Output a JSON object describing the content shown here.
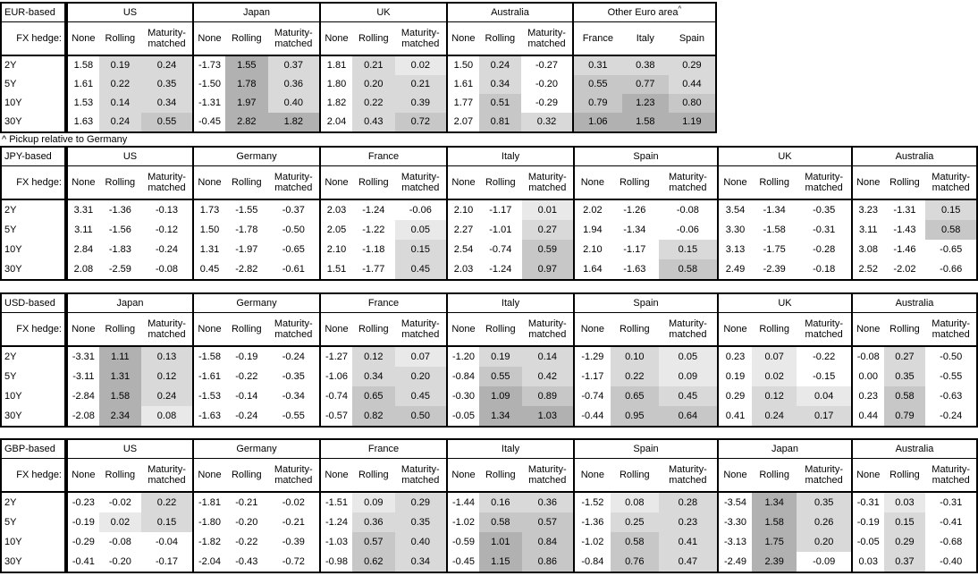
{
  "fx_hedge_label": "FX hedge:",
  "row_labels": [
    "2Y",
    "5Y",
    "10Y",
    "30Y"
  ],
  "hedge_columns": [
    "None",
    "Rolling",
    "Maturity-matched"
  ],
  "footnote": "^ Pickup relative to Germany",
  "footnote_marker": "^",
  "shade_thresholds": [
    0,
    0.1,
    0.5,
    1.0
  ],
  "shade_colors": {
    "negative": "#ffffff",
    "tier1": "#e9e9e9",
    "tier2": "#d9d9d9",
    "tier3": "#c7c7c7",
    "tier4": "#b1b1b1"
  },
  "tables": [
    {
      "base": "EUR-based",
      "groups": [
        {
          "name": "US",
          "columns": [
            "None",
            "Rolling",
            "Maturity-matched"
          ],
          "shaded": [
            false,
            true,
            true
          ],
          "rows": [
            [
              1.58,
              0.19,
              0.24
            ],
            [
              1.61,
              0.22,
              0.35
            ],
            [
              1.53,
              0.14,
              0.34
            ],
            [
              1.63,
              0.24,
              0.55
            ]
          ]
        },
        {
          "name": "Japan",
          "columns": [
            "None",
            "Rolling",
            "Maturity-matched"
          ],
          "shaded": [
            false,
            true,
            true
          ],
          "rows": [
            [
              -1.73,
              1.55,
              0.37
            ],
            [
              -1.5,
              1.78,
              0.36
            ],
            [
              -1.31,
              1.97,
              0.4
            ],
            [
              -0.45,
              2.82,
              1.82
            ]
          ]
        },
        {
          "name": "UK",
          "columns": [
            "None",
            "Rolling",
            "Maturity-matched"
          ],
          "shaded": [
            false,
            true,
            true
          ],
          "rows": [
            [
              1.81,
              0.21,
              0.02
            ],
            [
              1.8,
              0.2,
              0.21
            ],
            [
              1.82,
              0.22,
              0.39
            ],
            [
              2.04,
              0.43,
              0.72
            ]
          ]
        },
        {
          "name": "Australia",
          "columns": [
            "None",
            "Rolling",
            "Maturity-matched"
          ],
          "shaded": [
            false,
            true,
            true
          ],
          "rows": [
            [
              1.5,
              0.24,
              -0.27
            ],
            [
              1.61,
              0.34,
              -0.2
            ],
            [
              1.77,
              0.51,
              -0.29
            ],
            [
              2.07,
              0.81,
              0.32
            ]
          ]
        },
        {
          "name": "Other Euro area",
          "sup": "^",
          "columns": [
            "France",
            "Italy",
            "Spain"
          ],
          "shaded": [
            true,
            true,
            true
          ],
          "rows": [
            [
              0.31,
              0.38,
              0.29
            ],
            [
              0.55,
              0.77,
              0.44
            ],
            [
              0.79,
              1.23,
              0.8
            ],
            [
              1.06,
              1.58,
              1.19
            ]
          ]
        }
      ]
    },
    {
      "base": "JPY-based",
      "groups": [
        {
          "name": "US",
          "columns": [
            "None",
            "Rolling",
            "Maturity-matched"
          ],
          "shaded": [
            false,
            true,
            true
          ],
          "rows": [
            [
              3.31,
              -1.36,
              -0.13
            ],
            [
              3.11,
              -1.56,
              -0.12
            ],
            [
              2.84,
              -1.83,
              -0.24
            ],
            [
              2.08,
              -2.59,
              -0.08
            ]
          ]
        },
        {
          "name": "Germany",
          "columns": [
            "None",
            "Rolling",
            "Maturity-matched"
          ],
          "shaded": [
            false,
            true,
            true
          ],
          "rows": [
            [
              1.73,
              -1.55,
              -0.37
            ],
            [
              1.5,
              -1.78,
              -0.5
            ],
            [
              1.31,
              -1.97,
              -0.65
            ],
            [
              0.45,
              -2.82,
              -0.61
            ]
          ]
        },
        {
          "name": "France",
          "columns": [
            "None",
            "Rolling",
            "Maturity-matched"
          ],
          "shaded": [
            false,
            true,
            true
          ],
          "rows": [
            [
              2.03,
              -1.24,
              -0.06
            ],
            [
              2.05,
              -1.22,
              0.05
            ],
            [
              2.1,
              -1.18,
              0.15
            ],
            [
              1.51,
              -1.77,
              0.45
            ]
          ]
        },
        {
          "name": "Italy",
          "columns": [
            "None",
            "Rolling",
            "Maturity-matched"
          ],
          "shaded": [
            false,
            true,
            true
          ],
          "rows": [
            [
              2.1,
              -1.17,
              0.01
            ],
            [
              2.27,
              -1.01,
              0.27
            ],
            [
              2.54,
              -0.74,
              0.59
            ],
            [
              2.03,
              -1.24,
              0.97
            ]
          ]
        },
        {
          "name": "Spain",
          "columns": [
            "None",
            "Rolling",
            "Maturity-matched"
          ],
          "shaded": [
            false,
            true,
            true
          ],
          "rows": [
            [
              2.02,
              -1.26,
              -0.08
            ],
            [
              1.94,
              -1.34,
              -0.06
            ],
            [
              2.1,
              -1.17,
              0.15
            ],
            [
              1.64,
              -1.63,
              0.58
            ]
          ]
        },
        {
          "name": "UK",
          "columns": [
            "None",
            "Rolling",
            "Maturity-matched"
          ],
          "shaded": [
            false,
            true,
            true
          ],
          "rows": [
            [
              3.54,
              -1.34,
              -0.35
            ],
            [
              3.3,
              -1.58,
              -0.31
            ],
            [
              3.13,
              -1.75,
              -0.28
            ],
            [
              2.49,
              -2.39,
              -0.18
            ]
          ]
        },
        {
          "name": "Australia",
          "columns": [
            "None",
            "Rolling",
            "Maturity-matched"
          ],
          "shaded": [
            false,
            true,
            true
          ],
          "rows": [
            [
              3.23,
              -1.31,
              0.15
            ],
            [
              3.11,
              -1.43,
              0.58
            ],
            [
              3.08,
              -1.46,
              -0.65
            ],
            [
              2.52,
              -2.02,
              -0.66
            ]
          ]
        }
      ]
    },
    {
      "base": "USD-based",
      "groups": [
        {
          "name": "Japan",
          "columns": [
            "None",
            "Rolling",
            "Maturity-matched"
          ],
          "shaded": [
            false,
            true,
            true
          ],
          "rows": [
            [
              -3.31,
              1.11,
              0.13
            ],
            [
              -3.11,
              1.31,
              0.12
            ],
            [
              -2.84,
              1.58,
              0.24
            ],
            [
              -2.08,
              2.34,
              0.08
            ]
          ]
        },
        {
          "name": "Germany",
          "columns": [
            "None",
            "Rolling",
            "Maturity-matched"
          ],
          "shaded": [
            false,
            true,
            true
          ],
          "rows": [
            [
              -1.58,
              -0.19,
              -0.24
            ],
            [
              -1.61,
              -0.22,
              -0.35
            ],
            [
              -1.53,
              -0.14,
              -0.34
            ],
            [
              -1.63,
              -0.24,
              -0.55
            ]
          ]
        },
        {
          "name": "France",
          "columns": [
            "None",
            "Rolling",
            "Maturity-matched"
          ],
          "shaded": [
            false,
            true,
            true
          ],
          "rows": [
            [
              -1.27,
              0.12,
              0.07
            ],
            [
              -1.06,
              0.34,
              0.2
            ],
            [
              -0.74,
              0.65,
              0.45
            ],
            [
              -0.57,
              0.82,
              0.5
            ]
          ]
        },
        {
          "name": "Italy",
          "columns": [
            "None",
            "Rolling",
            "Maturity-matched"
          ],
          "shaded": [
            false,
            true,
            true
          ],
          "rows": [
            [
              -1.2,
              0.19,
              0.14
            ],
            [
              -0.84,
              0.55,
              0.42
            ],
            [
              -0.3,
              1.09,
              0.89
            ],
            [
              -0.05,
              1.34,
              1.03
            ]
          ]
        },
        {
          "name": "Spain",
          "columns": [
            "None",
            "Rolling",
            "Maturity-matched"
          ],
          "shaded": [
            false,
            true,
            true
          ],
          "rows": [
            [
              -1.29,
              0.1,
              0.05
            ],
            [
              -1.17,
              0.22,
              0.09
            ],
            [
              -0.74,
              0.65,
              0.45
            ],
            [
              -0.44,
              0.95,
              0.64
            ]
          ]
        },
        {
          "name": "UK",
          "columns": [
            "None",
            "Rolling",
            "Maturity-matched"
          ],
          "shaded": [
            false,
            true,
            true
          ],
          "rows": [
            [
              0.23,
              0.07,
              -0.22
            ],
            [
              0.19,
              0.02,
              -0.15
            ],
            [
              0.29,
              0.12,
              0.04
            ],
            [
              0.41,
              0.24,
              0.17
            ]
          ]
        },
        {
          "name": "Australia",
          "columns": [
            "None",
            "Rolling",
            "Maturity-matched"
          ],
          "shaded": [
            false,
            true,
            true
          ],
          "rows": [
            [
              -0.08,
              0.27,
              -0.5
            ],
            [
              0.0,
              0.35,
              -0.55
            ],
            [
              0.23,
              0.58,
              -0.63
            ],
            [
              0.44,
              0.79,
              -0.24
            ]
          ]
        }
      ]
    },
    {
      "base": "GBP-based",
      "groups": [
        {
          "name": "US",
          "columns": [
            "None",
            "Rolling",
            "Maturity-matched"
          ],
          "shaded": [
            false,
            true,
            true
          ],
          "rows": [
            [
              -0.23,
              -0.02,
              0.22
            ],
            [
              -0.19,
              0.02,
              0.15
            ],
            [
              -0.29,
              -0.08,
              -0.04
            ],
            [
              -0.41,
              -0.2,
              -0.17
            ]
          ]
        },
        {
          "name": "Germany",
          "columns": [
            "None",
            "Rolling",
            "Maturity-matched"
          ],
          "shaded": [
            false,
            true,
            true
          ],
          "rows": [
            [
              -1.81,
              -0.21,
              -0.02
            ],
            [
              -1.8,
              -0.2,
              -0.21
            ],
            [
              -1.82,
              -0.22,
              -0.39
            ],
            [
              -2.04,
              -0.43,
              -0.72
            ]
          ]
        },
        {
          "name": "France",
          "columns": [
            "None",
            "Rolling",
            "Maturity-matched"
          ],
          "shaded": [
            false,
            true,
            true
          ],
          "rows": [
            [
              -1.51,
              0.09,
              0.29
            ],
            [
              -1.24,
              0.36,
              0.35
            ],
            [
              -1.03,
              0.57,
              0.4
            ],
            [
              -0.98,
              0.62,
              0.34
            ]
          ]
        },
        {
          "name": "Italy",
          "columns": [
            "None",
            "Rolling",
            "Maturity-matched"
          ],
          "shaded": [
            false,
            true,
            true
          ],
          "rows": [
            [
              -1.44,
              0.16,
              0.36
            ],
            [
              -1.02,
              0.58,
              0.57
            ],
            [
              -0.59,
              1.01,
              0.84
            ],
            [
              -0.45,
              1.15,
              0.86
            ]
          ]
        },
        {
          "name": "Spain",
          "columns": [
            "None",
            "Rolling",
            "Maturity-matched"
          ],
          "shaded": [
            false,
            true,
            true
          ],
          "rows": [
            [
              -1.52,
              0.08,
              0.28
            ],
            [
              -1.36,
              0.25,
              0.23
            ],
            [
              -1.02,
              0.58,
              0.41
            ],
            [
              -0.84,
              0.76,
              0.47
            ]
          ]
        },
        {
          "name": "Japan",
          "columns": [
            "None",
            "Rolling",
            "Maturity-matched"
          ],
          "shaded": [
            false,
            true,
            true
          ],
          "rows": [
            [
              -3.54,
              1.34,
              0.35
            ],
            [
              -3.3,
              1.58,
              0.26
            ],
            [
              -3.13,
              1.75,
              0.2
            ],
            [
              -2.49,
              2.39,
              -0.09
            ]
          ]
        },
        {
          "name": "Australia",
          "columns": [
            "None",
            "Rolling",
            "Maturity-matched"
          ],
          "shaded": [
            false,
            true,
            true
          ],
          "rows": [
            [
              -0.31,
              0.03,
              -0.31
            ],
            [
              -0.19,
              0.15,
              -0.41
            ],
            [
              -0.05,
              0.29,
              -0.68
            ],
            [
              0.03,
              0.37,
              -0.4
            ]
          ]
        }
      ]
    }
  ]
}
